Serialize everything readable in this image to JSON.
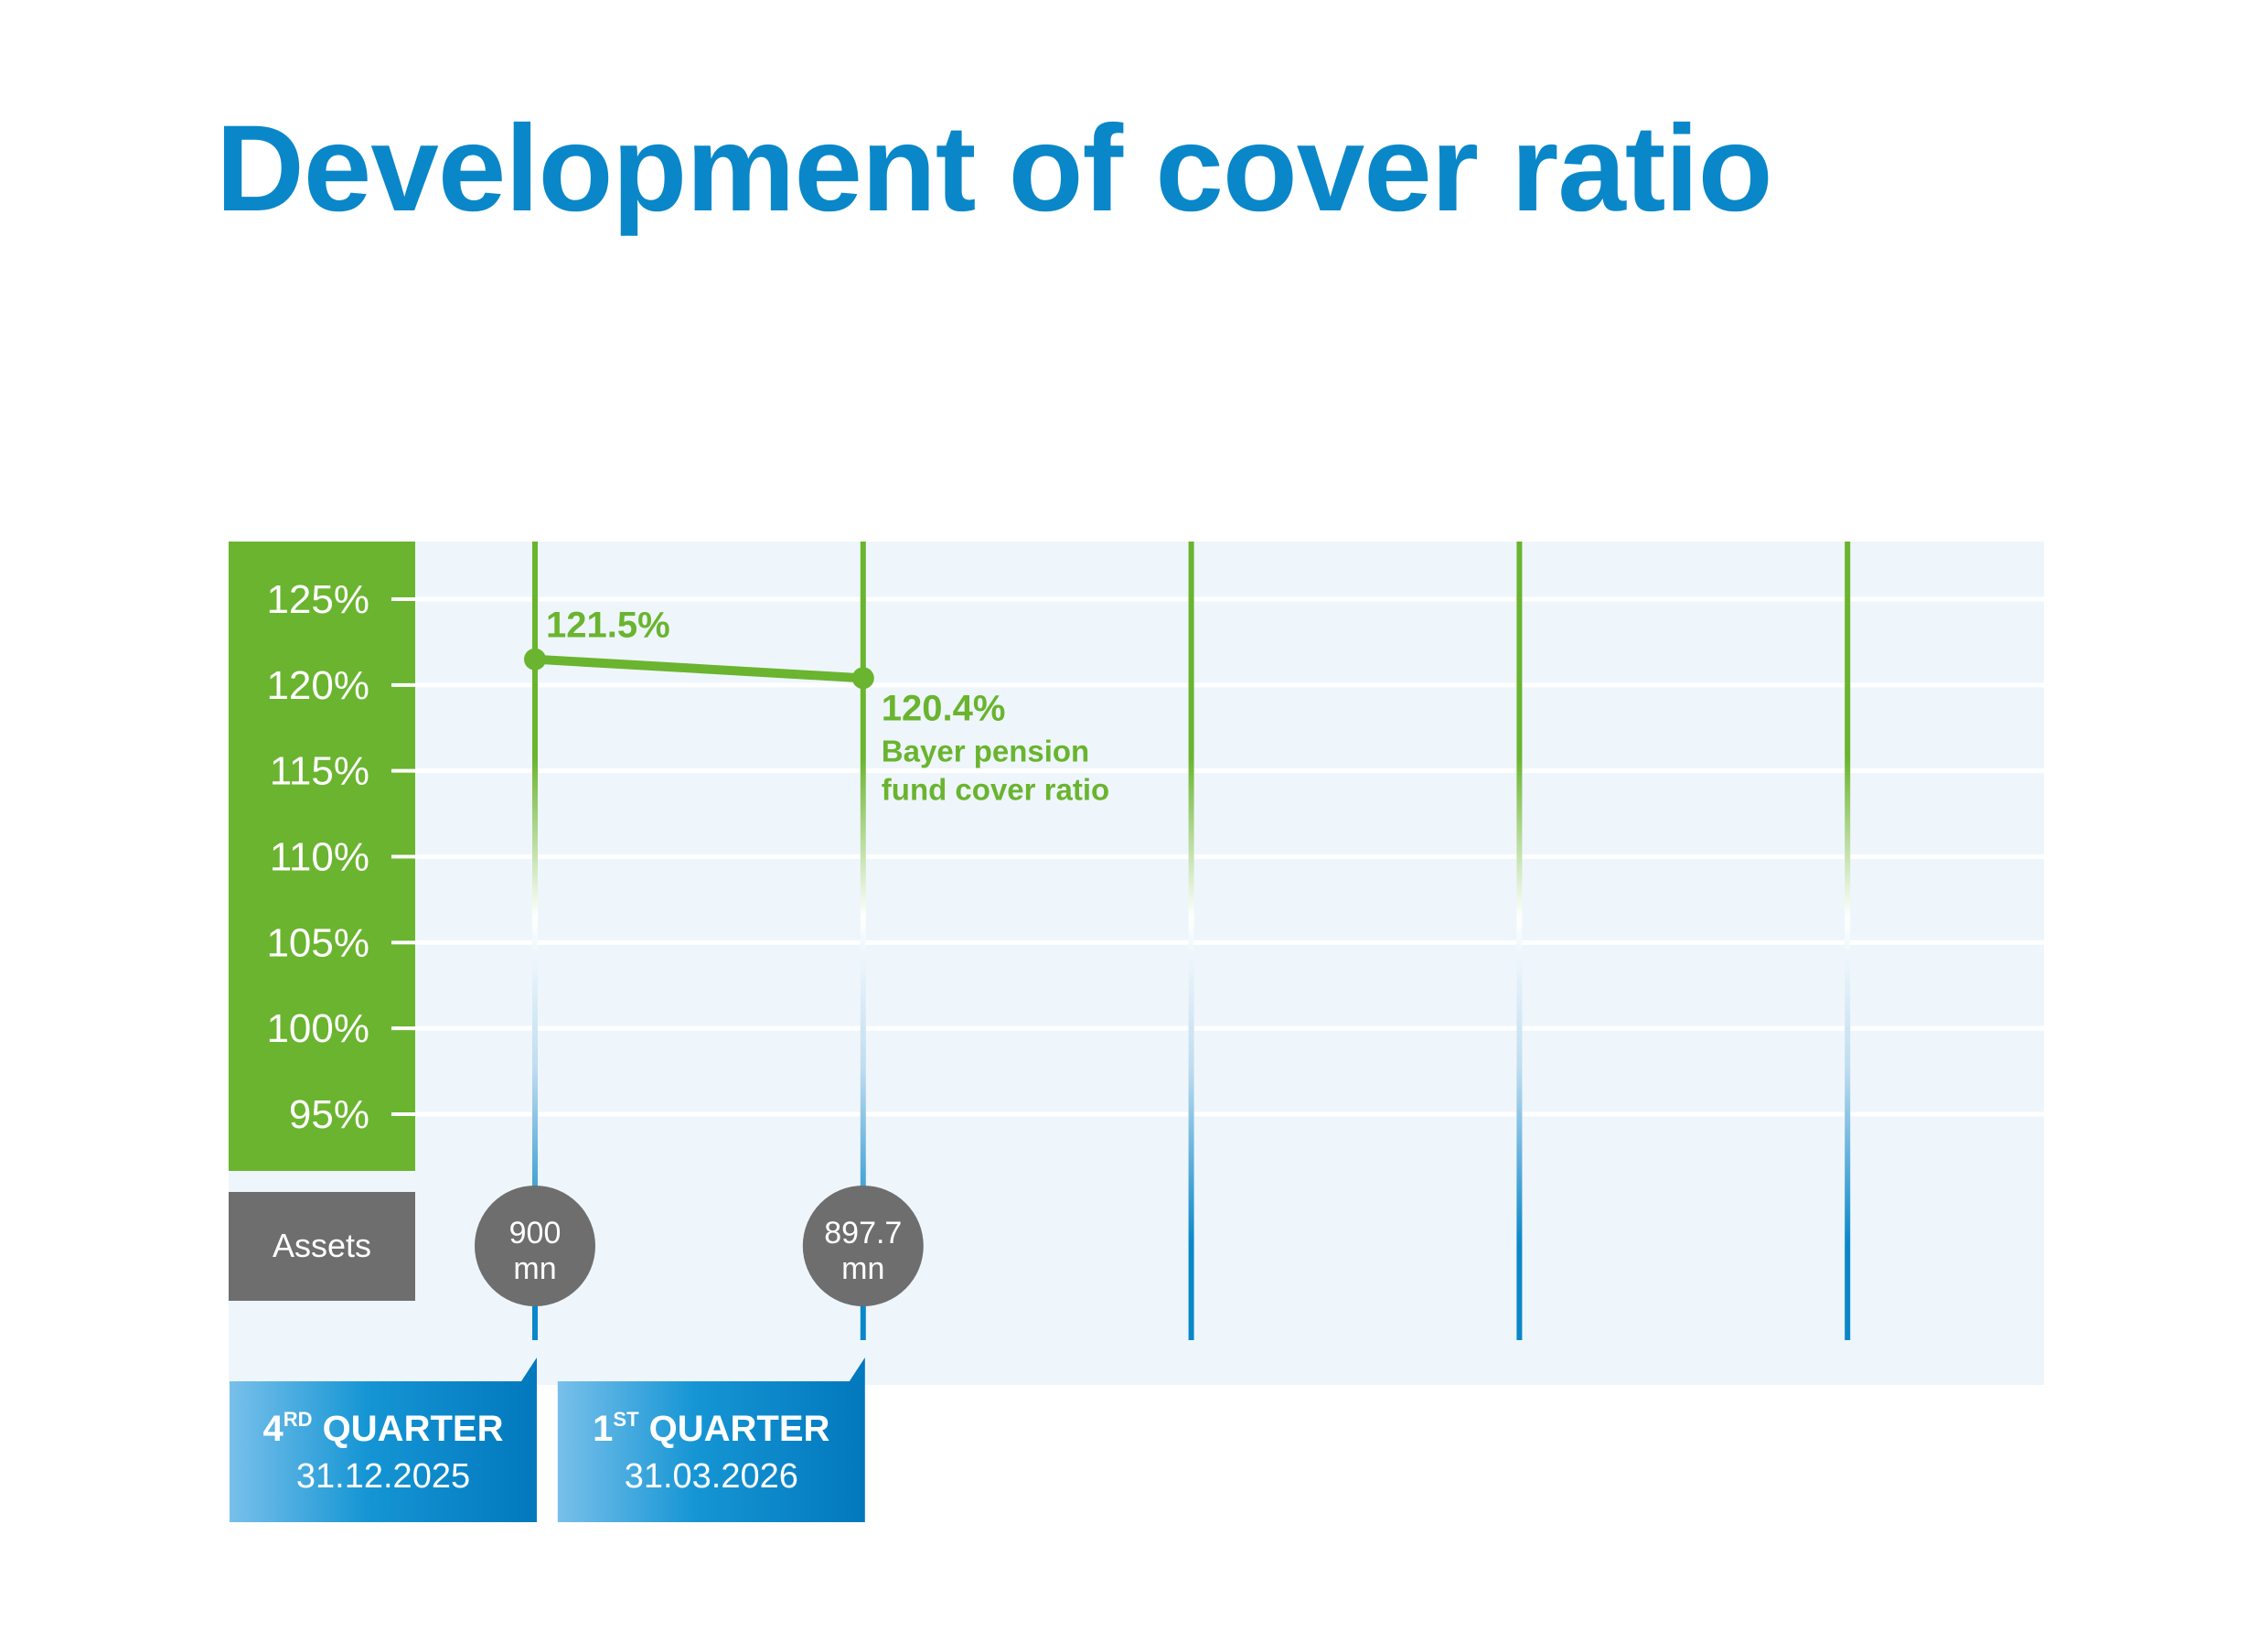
{
  "title": "Development of cover ratio",
  "colors": {
    "green": "#6ab42f",
    "blue": "#0a87c9",
    "grey": "#6e6e6e",
    "bg": "#eef6fb"
  },
  "chart_data": {
    "type": "line",
    "ylim": [
      95,
      125
    ],
    "yticks": [
      "125%",
      "120%",
      "115%",
      "110%",
      "105%",
      "100%",
      "95%"
    ],
    "ytick_values": [
      125,
      120,
      115,
      110,
      105,
      100,
      95
    ],
    "series": [
      {
        "name": "Bayer pension fund cover ratio",
        "name_lines": [
          "Bayer pension",
          "fund cover ratio"
        ],
        "x_index": [
          0,
          1
        ],
        "values": [
          121.5,
          120.4
        ],
        "labels": [
          "121.5%",
          "120.4%"
        ]
      }
    ],
    "columns": 5,
    "assets": {
      "label": "Assets",
      "values": [
        {
          "line1": "900",
          "line2": "mn"
        },
        {
          "line1": "897.7",
          "line2": "mn"
        }
      ]
    },
    "quarters": [
      {
        "num": "4",
        "sup": "RD",
        "label": "QUARTER",
        "date": "31.12.2025"
      },
      {
        "num": "1",
        "sup": "ST",
        "label": "QUARTER",
        "date": "31.03.2026"
      }
    ]
  }
}
